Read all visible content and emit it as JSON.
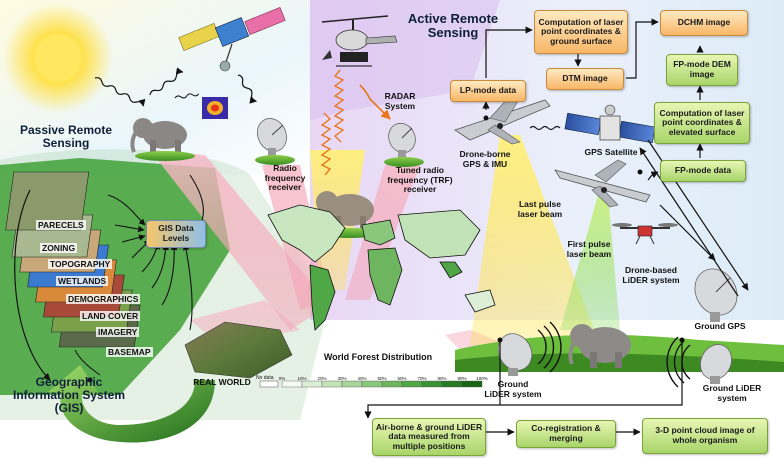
{
  "titles": {
    "active": "Active Remote Sensing",
    "passive": "Passive Remote Sensing",
    "gis": "Geographic Information System (GIS)"
  },
  "boxes": {
    "lp_mode": "LP-mode data",
    "comp_ground": "Computation of laser point coordinates & ground surface",
    "dtm": "DTM image",
    "dchm": "DCHM image",
    "fp_dem": "FP-mode DEM image",
    "comp_elevated": "Computation of laser point coordinates & elevated surface",
    "fp_mode": "FP-mode data",
    "gis_levels": "GIS Data Levels",
    "airborne": "Air-borne & ground LiDER data measured from multiple positions",
    "coreg": "Co-registration & merging",
    "cloud": "3-D point cloud image of whole organism"
  },
  "labels": {
    "radio_receiver": "Radio frequency receiver",
    "radar": "RADAR System",
    "trf": "Tuned radio frequency (TRF) receiver",
    "drone_gps": "Drone-borne GPS & IMU",
    "gps_sat": "GPS Satellite",
    "last_pulse": "Last pulse laser beam",
    "first_pulse": "First pulse laser beam",
    "drone_lider": "Drone-based LiDER system",
    "ground_gps": "Ground GPS",
    "ground_lider_left": "Ground LiDER system",
    "ground_lider_right": "Ground LiDER system",
    "world_forest": "World Forest Distribution",
    "real_world": "REAL WORLD"
  },
  "gis_layers": [
    "PARECELS",
    "ZONING",
    "TOPOGRAPHY",
    "WETLANDS",
    "DEMOGRAPHICS",
    "LAND COVER",
    "IMAGERY",
    "BASEMAP"
  ],
  "legend": {
    "no_data": "No data",
    "ticks": [
      "0%",
      "10%",
      "20%",
      "30%",
      "40%",
      "50%",
      "60%",
      "70%",
      "80%",
      "90%",
      "100%"
    ],
    "colors": [
      "#f4faf2",
      "#dcefd6",
      "#c2e3b8",
      "#a6d49a",
      "#8ac67c",
      "#6db65f",
      "#52a547",
      "#3b9133",
      "#287a24",
      "#186316"
    ]
  },
  "colors": {
    "accent_green": "#2f8a2a",
    "box_orange": "#f7b768",
    "box_green": "#a8d56a",
    "beam_yellow": "#ffe45c",
    "beam_pink": "#f4a3b4"
  }
}
